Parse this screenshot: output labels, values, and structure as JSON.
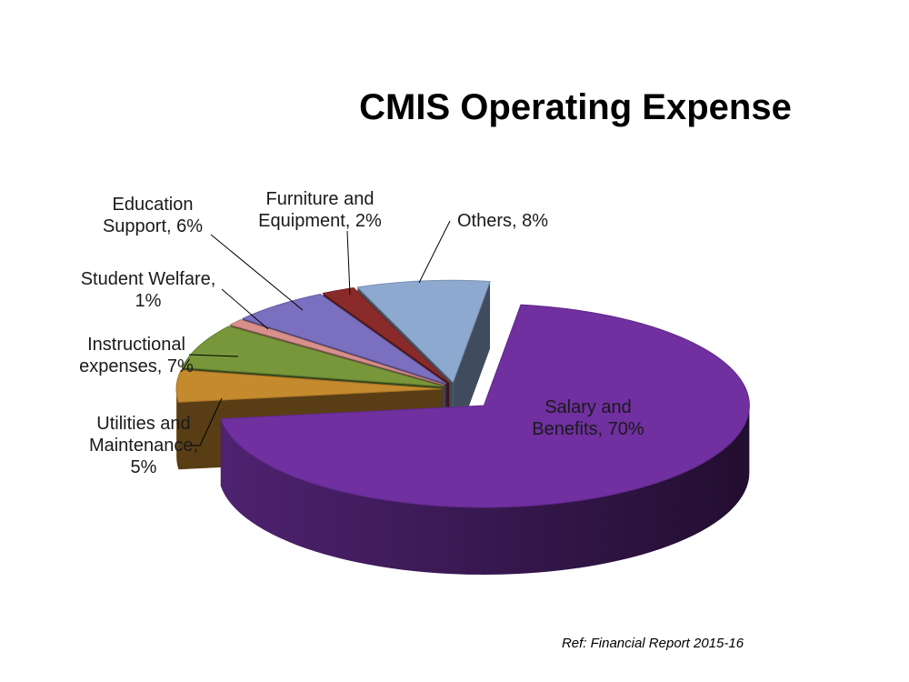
{
  "chart_data": {
    "type": "pie",
    "title": "CMIS Operating Expense",
    "slices": [
      {
        "label_lines": [
          "Salary and",
          "Benefits, 70%"
        ],
        "category": "Salary and Benefits",
        "value": 70,
        "color": "#7030A0"
      },
      {
        "label_lines": [
          "Utilities and",
          "Maintenance,",
          "5%"
        ],
        "category": "Utilities and Maintenance",
        "value": 5,
        "color": "#C58A2E"
      },
      {
        "label_lines": [
          "Instructional",
          "expenses, 7%"
        ],
        "category": "Instructional expenses",
        "value": 7,
        "color": "#77973A"
      },
      {
        "label_lines": [
          "Student Welfare,",
          "1%"
        ],
        "category": "Student Welfare",
        "value": 1,
        "color": "#D9908C"
      },
      {
        "label_lines": [
          "Education",
          "Support, 6%"
        ],
        "category": "Education Support",
        "value": 6,
        "color": "#7B6FBF"
      },
      {
        "label_lines": [
          "Furniture and",
          "Equipment, 2%"
        ],
        "category": "Furniture and Equipment",
        "value": 2,
        "color": "#8B2A2A"
      },
      {
        "label_lines": [
          "Others, 8%"
        ],
        "category": "Others",
        "value": 8,
        "color": "#8EA9CF"
      }
    ],
    "view": "3d-exploded",
    "labels": "outside-with-leaders"
  },
  "footer": {
    "reference": "Ref: Financial Report 2015-16"
  }
}
